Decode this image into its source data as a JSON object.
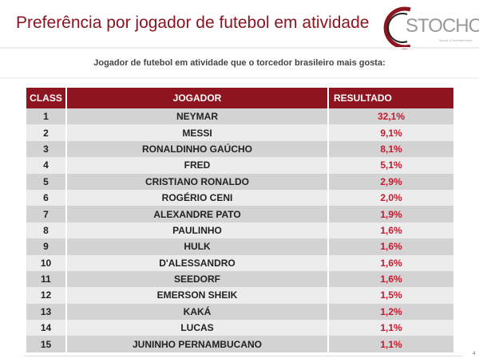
{
  "title": "Preferência por jogador de futebol em atividade",
  "logo": {
    "text": "STOCHOS",
    "tagline": "Sports & Entertainment"
  },
  "subtitle": "Jogador de futebol em atividade que o torcedor brasileiro mais gosta:",
  "table": {
    "headers": [
      "CLASS",
      "JOGADOR",
      "RESULTADO"
    ],
    "rows": [
      [
        "1",
        "NEYMAR",
        "32,1%"
      ],
      [
        "2",
        "MESSI",
        "9,1%"
      ],
      [
        "3",
        "RONALDINHO GAÚCHO",
        "8,1%"
      ],
      [
        "4",
        "FRED",
        "5,1%"
      ],
      [
        "5",
        "CRISTIANO RONALDO",
        "2,9%"
      ],
      [
        "6",
        "ROGÉRIO CENI",
        "2,0%"
      ],
      [
        "7",
        "ALEXANDRE PATO",
        "1,9%"
      ],
      [
        "8",
        "PAULINHO",
        "1,6%"
      ],
      [
        "9",
        "HULK",
        "1,6%"
      ],
      [
        "10",
        "D'ALESSANDRO",
        "1,6%"
      ],
      [
        "11",
        "SEEDORF",
        "1,6%"
      ],
      [
        "12",
        "EMERSON SHEIK",
        "1,5%"
      ],
      [
        "13",
        "KAKÁ",
        "1,2%"
      ],
      [
        "14",
        "LUCAS",
        "1,1%"
      ],
      [
        "15",
        "JUNINHO PERNAMBUCANO",
        "1,1%"
      ]
    ]
  },
  "page_number": "4",
  "colors": {
    "brand": "#8e1420",
    "result": "#c8192d"
  }
}
